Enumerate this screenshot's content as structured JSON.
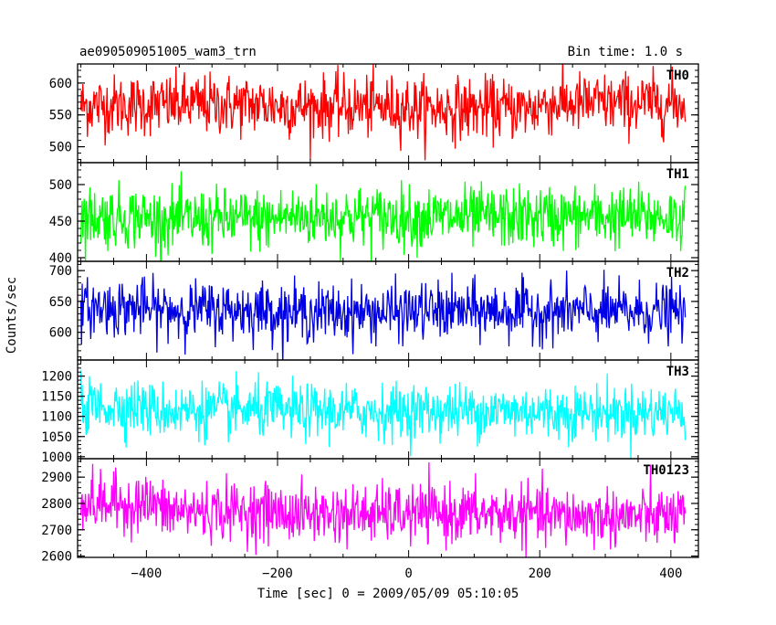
{
  "header": {
    "left_title": "ae090509051005_wam3_trn",
    "right_title": "Bin time: 1.0 s"
  },
  "colors": {
    "TH0": "#ff0000",
    "TH1": "#00ff00",
    "TH2": "#0000e6",
    "TH3": "#00ffff",
    "TH0123": "#ff00ff"
  },
  "chart_data": {
    "type": "line",
    "title": "ae090509051005_wam3_trn",
    "subtitle": "Bin time: 1.0 s",
    "xlabel": "Time [sec] 0 = 2009/05/09 05:10:05",
    "ylabel": "Counts/sec",
    "xlim": [
      -505,
      442
    ],
    "x_ticks": [
      -400,
      -200,
      0,
      200,
      400
    ],
    "x_tick_labels": [
      "−400",
      "−200",
      "0",
      "200",
      "400"
    ],
    "x_range": [
      -500,
      422
    ],
    "bin_time": 1.0,
    "grid": false,
    "legend": "none",
    "panels": [
      {
        "name": "TH0",
        "ylim": [
          475,
          630
        ],
        "y_ticks": [
          500,
          550,
          600
        ],
        "y_tick_labels": [
          "500",
          "550",
          "600"
        ],
        "mean": 565,
        "noise_sd": 24,
        "segments": [
          {
            "x": [
              -500,
              -400
            ],
            "mean": 565
          },
          {
            "x": [
              -400,
              -200
            ],
            "mean": 566
          },
          {
            "x": [
              -200,
              0
            ],
            "mean": 563
          },
          {
            "x": [
              0,
              200
            ],
            "mean": 560
          },
          {
            "x": [
              200,
              422
            ],
            "mean": 568
          }
        ]
      },
      {
        "name": "TH1",
        "ylim": [
          395,
          530
        ],
        "y_ticks": [
          400,
          450,
          500
        ],
        "y_tick_labels": [
          "400",
          "450",
          "500"
        ],
        "mean": 455,
        "noise_sd": 21,
        "segments": [
          {
            "x": [
              -500,
              -400
            ],
            "mean": 456
          },
          {
            "x": [
              -400,
              -200
            ],
            "mean": 452
          },
          {
            "x": [
              -200,
              0
            ],
            "mean": 456
          },
          {
            "x": [
              0,
              200
            ],
            "mean": 455
          },
          {
            "x": [
              200,
              422
            ],
            "mean": 456
          }
        ]
      },
      {
        "name": "TH2",
        "ylim": [
          555,
          715
        ],
        "y_ticks": [
          600,
          650,
          700
        ],
        "y_tick_labels": [
          "600",
          "650",
          "700"
        ],
        "mean": 635,
        "noise_sd": 23,
        "segments": [
          {
            "x": [
              -500,
              -400
            ],
            "mean": 640
          },
          {
            "x": [
              -400,
              -200
            ],
            "mean": 636
          },
          {
            "x": [
              -200,
              0
            ],
            "mean": 632
          },
          {
            "x": [
              0,
              200
            ],
            "mean": 634
          },
          {
            "x": [
              200,
              422
            ],
            "mean": 633
          }
        ]
      },
      {
        "name": "TH3",
        "ylim": [
          995,
          1240
        ],
        "y_ticks": [
          1000,
          1050,
          1100,
          1150,
          1200
        ],
        "y_tick_labels": [
          "1000",
          "1050",
          "1100",
          "1150",
          "1200"
        ],
        "mean": 1115,
        "noise_sd": 34,
        "segments": [
          {
            "x": [
              -500,
              -400
            ],
            "mean": 1125
          },
          {
            "x": [
              -400,
              -200
            ],
            "mean": 1115
          },
          {
            "x": [
              -200,
              0
            ],
            "mean": 1112
          },
          {
            "x": [
              0,
              200
            ],
            "mean": 1114
          },
          {
            "x": [
              200,
              422
            ],
            "mean": 1110
          }
        ]
      },
      {
        "name": "TH0123",
        "ylim": [
          2595,
          2970
        ],
        "y_ticks": [
          2600,
          2700,
          2800,
          2900
        ],
        "y_tick_labels": [
          "2600",
          "2700",
          "2800",
          "2900"
        ],
        "mean": 2770,
        "noise_sd": 55,
        "segments": [
          {
            "x": [
              -500,
              -380
            ],
            "mean": 2800
          },
          {
            "x": [
              -380,
              -200
            ],
            "mean": 2770
          },
          {
            "x": [
              -200,
              0
            ],
            "mean": 2760
          },
          {
            "x": [
              0,
              200
            ],
            "mean": 2760
          },
          {
            "x": [
              200,
              422
            ],
            "mean": 2750
          }
        ]
      }
    ]
  }
}
